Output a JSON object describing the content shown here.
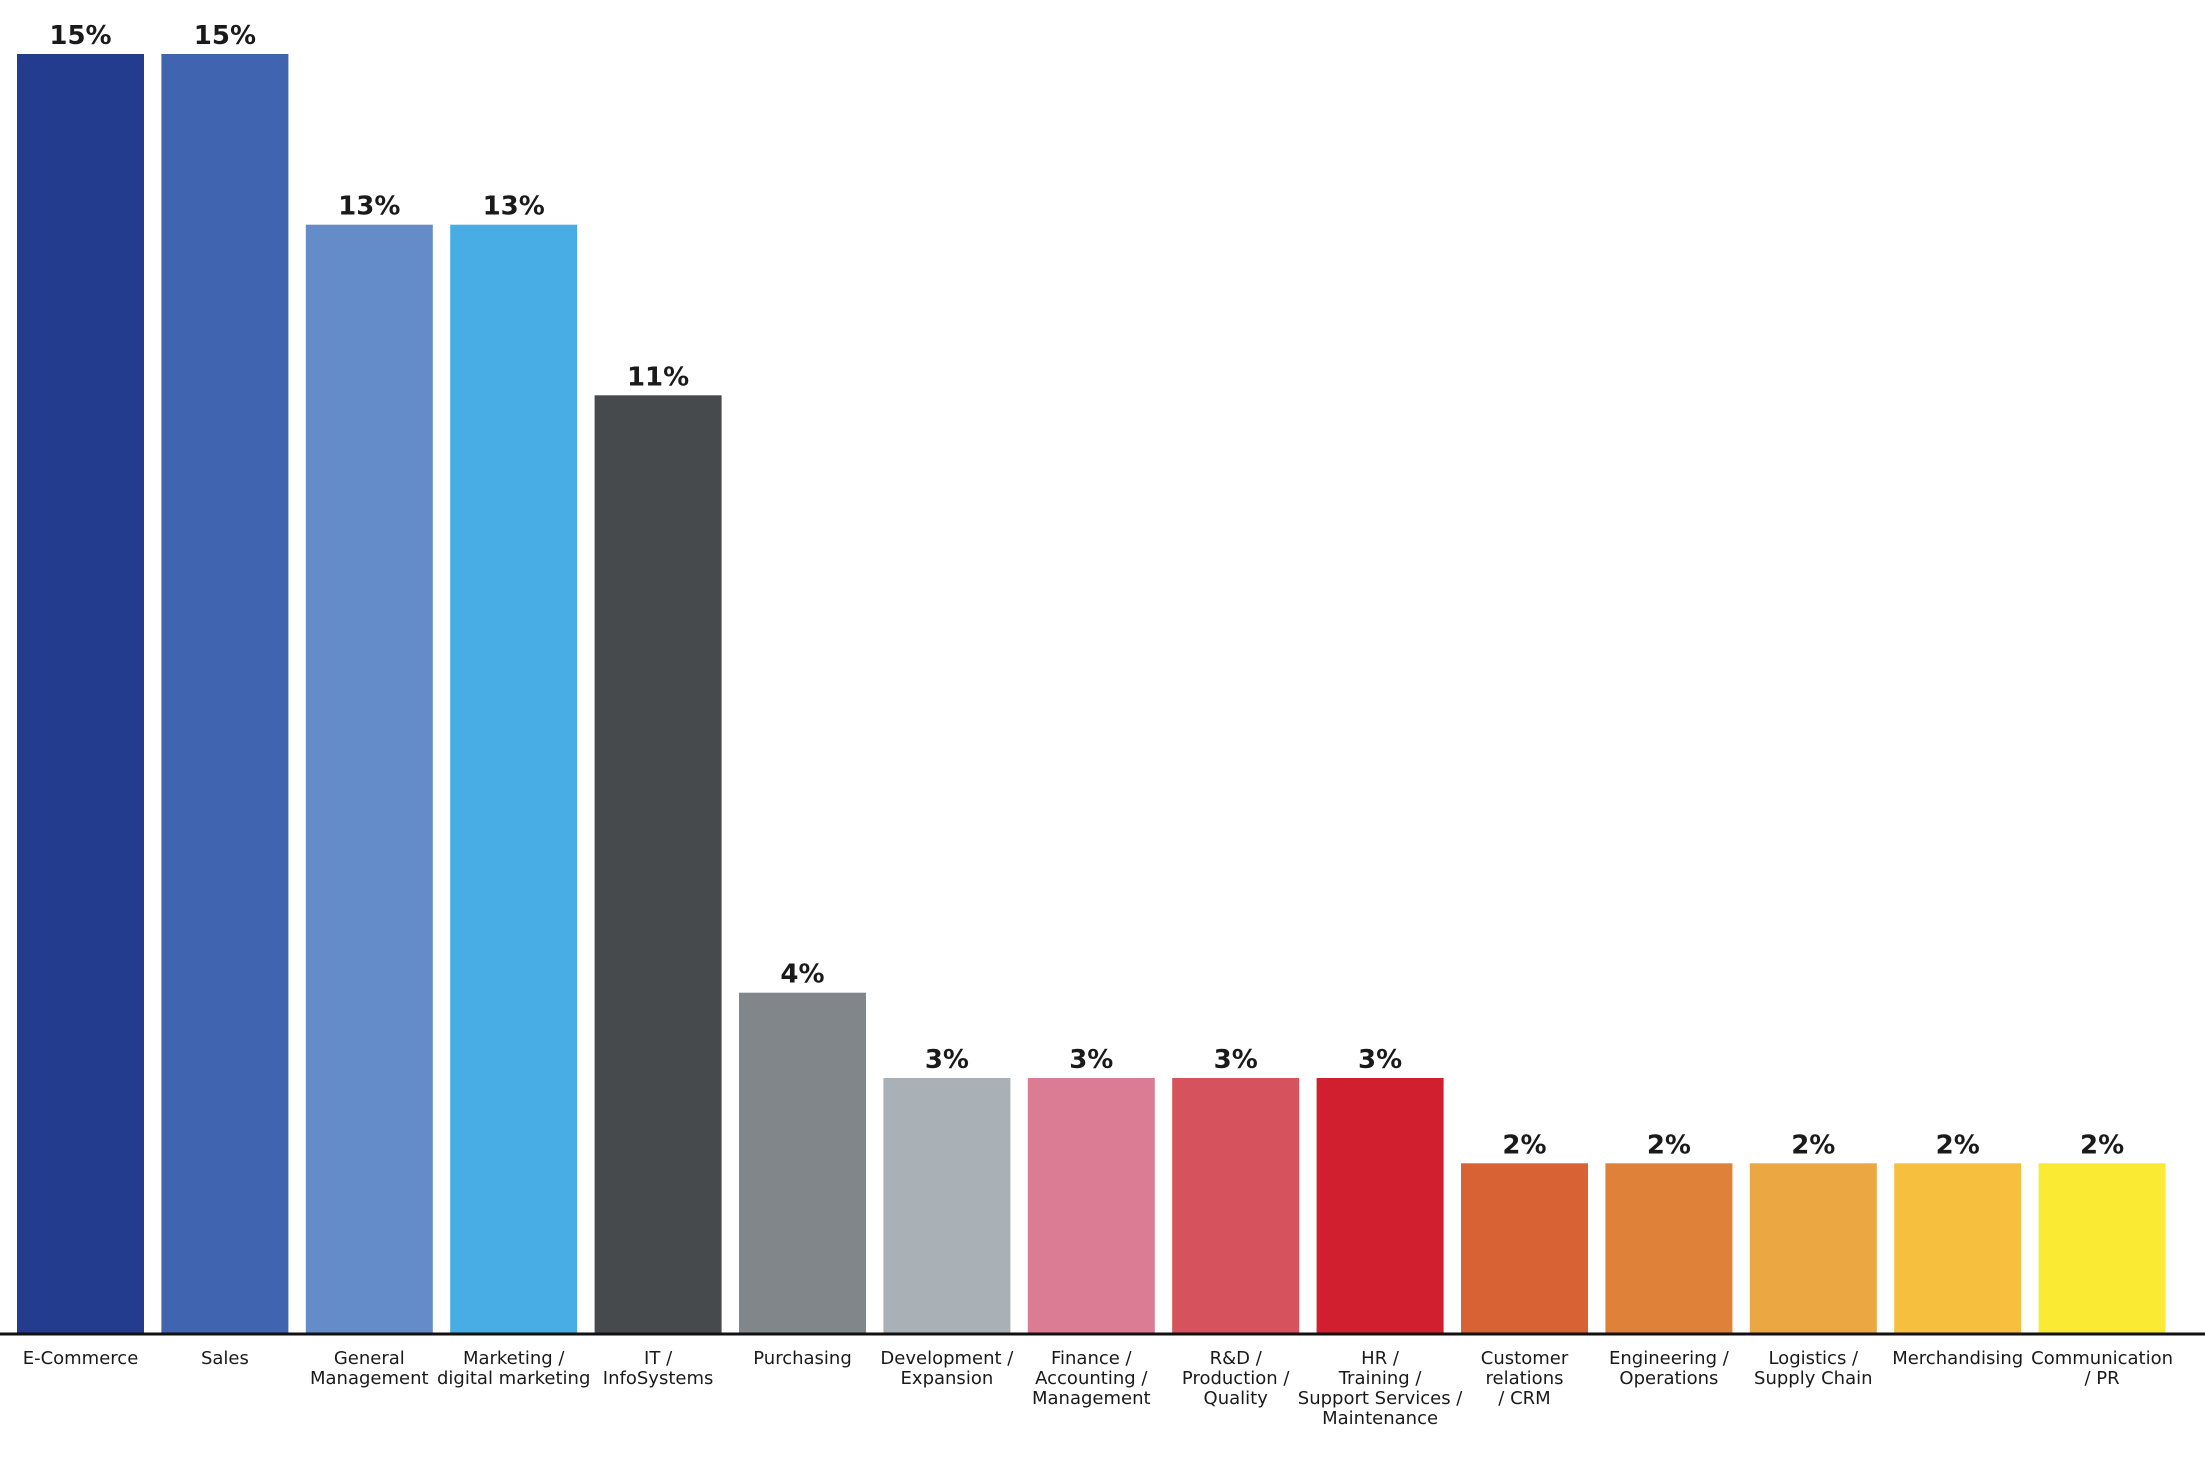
{
  "chart_data": {
    "type": "bar",
    "title": "",
    "xlabel": "",
    "ylabel": "",
    "ylim": [
      0,
      15
    ],
    "grid": false,
    "legend": "none",
    "categories": [
      [
        "E-Commerce"
      ],
      [
        "Sales"
      ],
      [
        "General",
        "Management"
      ],
      [
        "Marketing /",
        "digital marketing"
      ],
      [
        "IT /",
        "InfoSystems"
      ],
      [
        "Purchasing"
      ],
      [
        "Development /",
        "Expansion"
      ],
      [
        "Finance /",
        "Accounting /",
        "Management"
      ],
      [
        "R&D /",
        "Production /",
        "Quality"
      ],
      [
        "HR /",
        "Training /",
        "Support Services /",
        "Maintenance"
      ],
      [
        "Customer",
        "relations",
        "/ CRM"
      ],
      [
        "Engineering /",
        "Operations"
      ],
      [
        "Logistics /",
        "Supply Chain"
      ],
      [
        "Merchandising"
      ],
      [
        "Communication",
        "/ PR"
      ]
    ],
    "values": [
      15,
      15,
      13,
      13,
      11,
      4,
      3,
      3,
      3,
      3,
      2,
      2,
      2,
      2,
      2
    ],
    "value_labels": [
      "15%",
      "15%",
      "13%",
      "13%",
      "11%",
      "4%",
      "3%",
      "3%",
      "3%",
      "3%",
      "2%",
      "2%",
      "2%",
      "2%",
      "2%"
    ],
    "colors": [
      "#233c8e",
      "#4164b0",
      "#638cc8",
      "#47ade4",
      "#464a4d",
      "#808689",
      "#a9b1b7",
      "#db7c94",
      "#d6525c",
      "#d21f30",
      "#d96234",
      "#e0813a",
      "#eaa742",
      "#f6c03e",
      "#fbea34"
    ]
  }
}
